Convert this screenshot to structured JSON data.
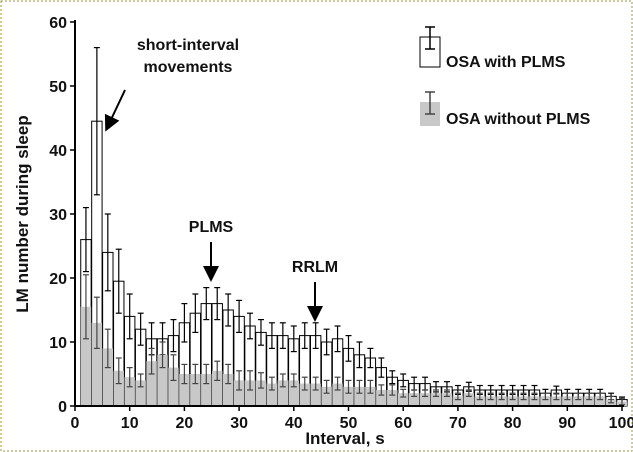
{
  "chart_data": {
    "type": "bar",
    "xlabel": "Interval, s",
    "ylabel": "LM number during sleep",
    "x": [
      2,
      4,
      6,
      8,
      10,
      12,
      14,
      16,
      18,
      20,
      22,
      24,
      26,
      28,
      30,
      32,
      34,
      36,
      38,
      40,
      42,
      44,
      46,
      48,
      50,
      52,
      54,
      56,
      58,
      60,
      62,
      64,
      66,
      68,
      70,
      72,
      74,
      76,
      78,
      80,
      82,
      84,
      86,
      88,
      90,
      92,
      94,
      96,
      98,
      100
    ],
    "series": [
      {
        "name": "OSA with PLMS",
        "color": "#ffffff",
        "values": [
          26,
          44.5,
          24,
          19.5,
          14,
          12,
          10.5,
          10.5,
          11,
          13,
          14.5,
          16,
          16,
          15,
          14,
          12.5,
          11.5,
          11,
          11,
          10.5,
          11,
          11,
          10,
          10.5,
          9,
          8,
          7.5,
          6,
          4.5,
          4,
          3.5,
          3.5,
          3,
          3,
          2.5,
          3,
          2.5,
          2.5,
          2.5,
          2.5,
          2.5,
          2.5,
          2,
          2.5,
          2,
          2,
          2,
          2,
          1.5,
          1
        ],
        "errors": [
          5,
          11.5,
          6,
          5,
          3.5,
          2.5,
          2.5,
          2.5,
          2.5,
          3,
          3,
          2.5,
          2.5,
          2.5,
          2.5,
          2,
          2,
          2,
          2,
          2,
          2,
          2,
          2,
          2,
          2,
          2,
          1.5,
          1.5,
          1,
          1,
          1,
          1,
          0.8,
          0.8,
          0.7,
          0.7,
          0.7,
          0.7,
          0.7,
          0.7,
          0.7,
          0.7,
          0.6,
          0.6,
          0.6,
          0.6,
          0.6,
          0.6,
          0.5,
          0.4
        ]
      },
      {
        "name": "OSA without PLMS",
        "color": "#c8c8c8",
        "values": [
          15.5,
          13,
          9,
          5.5,
          4.5,
          4,
          7,
          8,
          6,
          5,
          5,
          5,
          5.5,
          5,
          4,
          4,
          4,
          3.5,
          4,
          4,
          3.5,
          3.5,
          3,
          3.5,
          3,
          3,
          3,
          2.5,
          2.5,
          2,
          2,
          2,
          2,
          2,
          1.5,
          2,
          1.5,
          1.5,
          1.5,
          1.5,
          1.5,
          1.5,
          1.5,
          1.5,
          1.5,
          1.5,
          1.5,
          1.5,
          1,
          0.7
        ],
        "errors": [
          5,
          4,
          3,
          2,
          1.5,
          1,
          2,
          2,
          2,
          1.5,
          1.5,
          1.5,
          1.5,
          1.5,
          1.5,
          1.5,
          1.2,
          1,
          1,
          1,
          1,
          1,
          1,
          1,
          1,
          1,
          1,
          0.8,
          0.8,
          0.6,
          0.5,
          0.5,
          0.5,
          0.5,
          0.5,
          0.5,
          0.5,
          0.5,
          0.5,
          0.5,
          0.5,
          0.5,
          0.5,
          0.5,
          0.5,
          0.5,
          0.5,
          0.5,
          0.5,
          0.5
        ]
      }
    ],
    "xlim": [
      0,
      100
    ],
    "xticks": [
      0,
      10,
      20,
      30,
      40,
      50,
      60,
      70,
      80,
      90,
      100
    ],
    "ylim": [
      0,
      60
    ],
    "yticks": [
      0,
      10,
      20,
      30,
      40,
      50,
      60
    ],
    "legend": "upper right",
    "annotations": [
      {
        "text": [
          "short-interval",
          "movements"
        ]
      },
      {
        "text": [
          "PLMS"
        ]
      },
      {
        "text": [
          "RRLM"
        ]
      }
    ]
  }
}
